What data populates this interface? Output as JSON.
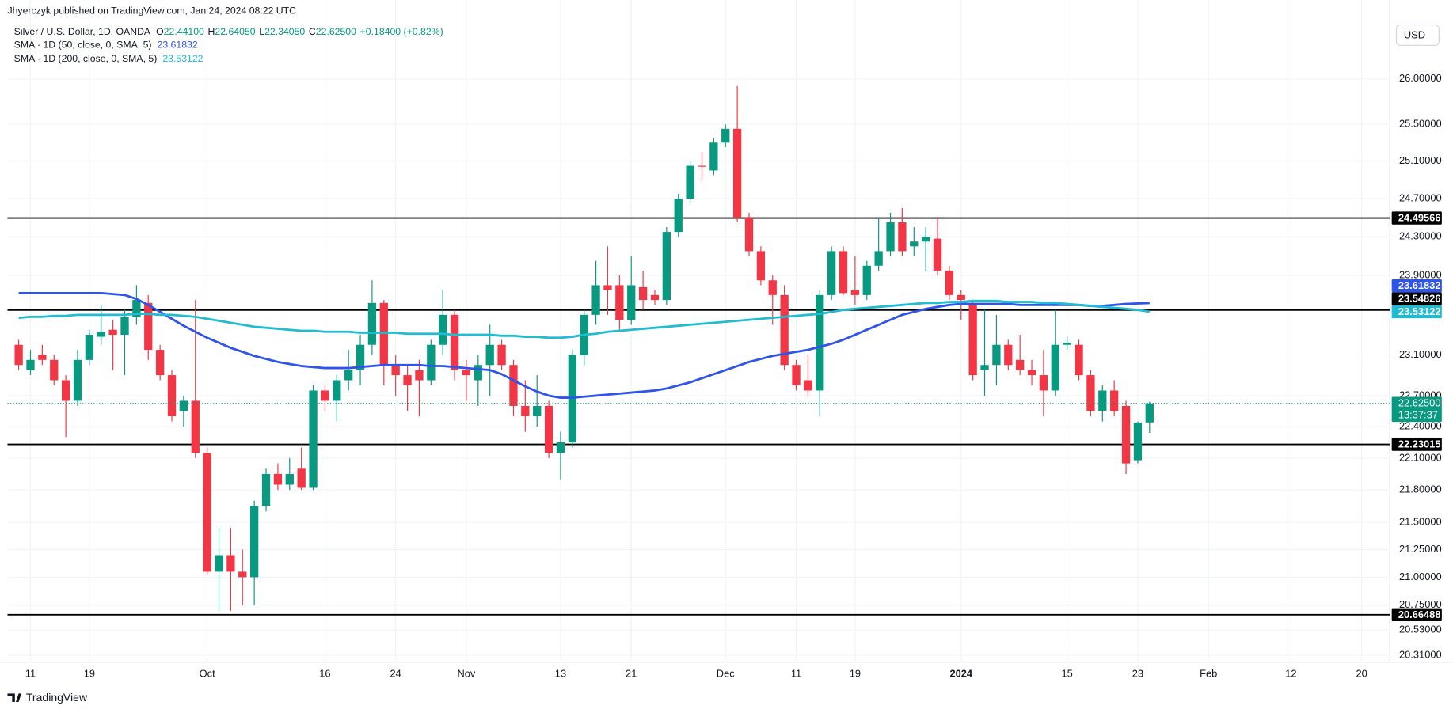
{
  "chart_data": {
    "type": "candlestick",
    "publisher": "Jhyerczyk published on TradingView.com, Jan 24, 2024 08:22 UTC",
    "symbol": "Silver / U.S. Dollar, 1D, OANDA",
    "ohlc": [
      {
        "key": "O",
        "text": "22.44100"
      },
      {
        "key": "H",
        "text": "22.64050"
      },
      {
        "key": "L",
        "text": "22.34050"
      },
      {
        "key": "C",
        "text": "22.62500"
      }
    ],
    "change": "+0.18400 (+0.82%)",
    "currency": "USD",
    "footer": "TradingView",
    "log": true,
    "grid": true,
    "up_color": "#089981",
    "down_color": "#f23645",
    "xlim": [
      -0.95,
      116.4
    ],
    "ylim": [
      20.25,
      26.81
    ],
    "xticks": [
      {
        "value": 1,
        "label": "11"
      },
      {
        "value": 6,
        "label": "19"
      },
      {
        "value": 16,
        "label": "Oct"
      },
      {
        "value": 26,
        "label": "16"
      },
      {
        "value": 32,
        "label": "24"
      },
      {
        "value": 38,
        "label": "Nov"
      },
      {
        "value": 46,
        "label": "13"
      },
      {
        "value": 52,
        "label": "21"
      },
      {
        "value": 60,
        "label": "Dec"
      },
      {
        "value": 66,
        "label": "11"
      },
      {
        "value": 71,
        "label": "19"
      },
      {
        "value": 80,
        "label": "2024"
      },
      {
        "value": 89,
        "label": "15"
      },
      {
        "value": 95,
        "label": "23"
      },
      {
        "value": 101,
        "label": "Feb"
      },
      {
        "value": 108,
        "label": "12"
      },
      {
        "value": 114,
        "label": "20"
      }
    ],
    "yticks": [
      {
        "value": 26,
        "label": "26.00000"
      },
      {
        "value": 25.5,
        "label": "25.50000"
      },
      {
        "value": 25.1,
        "label": "25.10000"
      },
      {
        "value": 24.7,
        "label": "24.70000"
      },
      {
        "value": 24.3,
        "label": "24.30000"
      },
      {
        "value": 23.9,
        "label": "23.90000"
      },
      {
        "value": 23.1,
        "label": "23.10000"
      },
      {
        "value": 22.7,
        "label": "22.70000"
      },
      {
        "value": 22.4,
        "label": "22.40000"
      },
      {
        "value": 22.1,
        "label": "22.10000"
      },
      {
        "value": 21.8,
        "label": "21.80000"
      },
      {
        "value": 21.5,
        "label": "21.50000"
      },
      {
        "value": 21.25,
        "label": "21.25000"
      },
      {
        "value": 21,
        "label": "21.00000"
      },
      {
        "value": 20.75,
        "label": "20.75000"
      },
      {
        "value": 20.53,
        "label": "20.53000"
      },
      {
        "value": 20.31,
        "label": "20.31000"
      }
    ],
    "candles": {
      "open": [
        23.2,
        22.95,
        23.1,
        23.05,
        22.85,
        22.65,
        23.05,
        23.28,
        23.35,
        23.3,
        23.48,
        23.62,
        23.15,
        22.9,
        22.55,
        22.65,
        22.15,
        21.05,
        21.2,
        21.05,
        21.0,
        21.65,
        21.95,
        21.85,
        22.0,
        21.82,
        22.75,
        22.65,
        22.85,
        22.95,
        23.2,
        23.62,
        23.0,
        22.9,
        22.95,
        22.85,
        23.2,
        23.5,
        22.95,
        22.85,
        23.0,
        23.2,
        23.0,
        22.6,
        22.5,
        22.6,
        22.15,
        22.25,
        23.1,
        23.5,
        23.8,
        23.8,
        23.45,
        23.78,
        23.7,
        23.65,
        24.35,
        24.7,
        25.05,
        25.0,
        25.3,
        25.45,
        24.5,
        24.15,
        23.85,
        23.7,
        23.0,
        22.85,
        22.75,
        23.7,
        24.15,
        23.75,
        23.7,
        24.0,
        24.15,
        24.45,
        24.2,
        24.25,
        24.28,
        23.95,
        23.7,
        23.6,
        22.95,
        23.0,
        23.2,
        23.05,
        22.95,
        22.9,
        22.75,
        23.2,
        23.2,
        22.9,
        22.55,
        22.75,
        22.6,
        22.08,
        22.441
      ],
      "high": [
        23.25,
        23.15,
        23.2,
        23.1,
        22.9,
        23.15,
        23.35,
        23.6,
        23.45,
        23.55,
        23.8,
        23.7,
        23.2,
        22.95,
        22.7,
        23.65,
        22.2,
        21.45,
        21.45,
        21.25,
        21.7,
        22.0,
        22.05,
        22.1,
        22.2,
        22.8,
        22.8,
        22.9,
        23.15,
        23.3,
        23.85,
        23.65,
        23.1,
        23.0,
        23.05,
        23.25,
        23.75,
        23.55,
        23.05,
        23.1,
        23.4,
        23.25,
        23.05,
        22.85,
        22.9,
        22.65,
        22.35,
        23.15,
        23.55,
        24.05,
        24.2,
        23.9,
        24.1,
        23.95,
        23.75,
        24.4,
        24.75,
        25.1,
        25.2,
        25.35,
        25.5,
        25.92,
        24.55,
        24.2,
        23.9,
        23.8,
        23.05,
        23.1,
        23.75,
        24.2,
        24.2,
        24.1,
        24.05,
        24.5,
        24.55,
        24.6,
        24.4,
        24.4,
        24.5,
        24.0,
        23.75,
        23.65,
        23.55,
        23.5,
        23.25,
        23.3,
        23.05,
        23.15,
        23.55,
        23.28,
        23.25,
        22.95,
        22.8,
        22.85,
        22.65,
        22.45,
        22.6405
      ],
      "low": [
        22.95,
        22.9,
        23.0,
        22.8,
        22.3,
        22.6,
        23.0,
        23.2,
        22.95,
        22.9,
        23.4,
        23.05,
        22.85,
        22.45,
        22.4,
        22.1,
        21.02,
        20.7,
        20.7,
        20.75,
        20.75,
        21.6,
        21.8,
        21.8,
        21.8,
        21.8,
        22.55,
        22.45,
        22.75,
        22.8,
        23.1,
        22.8,
        22.7,
        22.55,
        22.5,
        22.8,
        23.1,
        22.85,
        22.65,
        22.6,
        22.7,
        22.95,
        22.5,
        22.35,
        22.4,
        22.1,
        21.9,
        22.2,
        23.0,
        23.4,
        23.5,
        23.35,
        23.4,
        23.55,
        23.6,
        23.6,
        24.3,
        24.65,
        24.9,
        24.95,
        25.25,
        24.45,
        24.1,
        23.8,
        23.4,
        22.95,
        22.75,
        22.7,
        22.5,
        23.65,
        23.7,
        23.6,
        23.65,
        23.95,
        24.1,
        24.1,
        24.1,
        23.95,
        23.9,
        23.65,
        23.45,
        22.85,
        22.7,
        22.8,
        22.95,
        22.9,
        22.8,
        22.5,
        22.7,
        23.15,
        22.85,
        22.5,
        22.45,
        22.5,
        21.95,
        22.05,
        22.3405
      ],
      "close": [
        23.0,
        23.05,
        23.05,
        22.85,
        22.65,
        23.05,
        23.3,
        23.33,
        23.3,
        23.48,
        23.65,
        23.15,
        22.9,
        22.5,
        22.65,
        22.15,
        21.05,
        21.2,
        21.05,
        21.0,
        21.65,
        21.95,
        21.85,
        21.95,
        21.82,
        22.75,
        22.65,
        22.85,
        22.95,
        23.2,
        23.62,
        23.0,
        22.9,
        22.8,
        22.85,
        23.2,
        23.5,
        22.95,
        22.9,
        23.0,
        23.2,
        23.0,
        22.6,
        22.5,
        22.6,
        22.15,
        22.25,
        23.1,
        23.5,
        23.8,
        23.75,
        23.45,
        23.8,
        23.65,
        23.65,
        24.35,
        24.7,
        25.05,
        25.04,
        25.3,
        25.45,
        24.5,
        24.15,
        23.85,
        23.7,
        23.0,
        22.8,
        22.75,
        23.7,
        24.15,
        23.72,
        23.7,
        24.0,
        24.15,
        24.45,
        24.15,
        24.25,
        24.3,
        23.95,
        23.7,
        23.65,
        22.9,
        23.0,
        23.2,
        23.0,
        22.95,
        22.9,
        22.75,
        23.2,
        23.22,
        22.9,
        22.55,
        22.75,
        22.55,
        22.05,
        22.44,
        22.625
      ]
    },
    "series": [
      {
        "name": "SMA · 1D (50, close, 0, SMA, 5)",
        "color": "#2f54eb",
        "values": [
          23.72,
          23.72,
          23.72,
          23.72,
          23.72,
          23.72,
          23.72,
          23.72,
          23.71,
          23.7,
          23.66,
          23.6,
          23.53,
          23.46,
          23.39,
          23.33,
          23.27,
          23.22,
          23.17,
          23.13,
          23.09,
          23.06,
          23.03,
          23.01,
          22.99,
          22.98,
          22.97,
          22.97,
          22.97,
          22.98,
          22.99,
          23.0,
          23.0,
          23.0,
          23.0,
          22.99,
          22.99,
          22.98,
          22.97,
          22.96,
          22.95,
          22.91,
          22.85,
          22.79,
          22.74,
          22.7,
          22.68,
          22.68,
          22.69,
          22.7,
          22.71,
          22.72,
          22.73,
          22.74,
          22.75,
          22.77,
          22.8,
          22.83,
          22.87,
          22.91,
          22.95,
          22.99,
          23.03,
          23.06,
          23.09,
          23.11,
          23.13,
          23.15,
          23.18,
          23.21,
          23.25,
          23.3,
          23.35,
          23.4,
          23.45,
          23.5,
          23.53,
          23.56,
          23.58,
          23.6,
          23.61,
          23.61,
          23.61,
          23.61,
          23.61,
          23.6,
          23.6,
          23.6,
          23.6,
          23.6,
          23.6,
          23.59,
          23.59,
          23.6,
          23.61,
          23.615,
          23.61832
        ]
      },
      {
        "name": "SMA · 1D (200, close, 0, SMA, 5)",
        "color": "#1fbcd2",
        "values": [
          23.47,
          23.48,
          23.48,
          23.49,
          23.49,
          23.5,
          23.5,
          23.5,
          23.5,
          23.5,
          23.51,
          23.51,
          23.5,
          23.5,
          23.49,
          23.48,
          23.46,
          23.44,
          23.42,
          23.4,
          23.38,
          23.37,
          23.36,
          23.35,
          23.34,
          23.34,
          23.33,
          23.33,
          23.33,
          23.32,
          23.32,
          23.32,
          23.32,
          23.31,
          23.31,
          23.31,
          23.31,
          23.3,
          23.3,
          23.3,
          23.3,
          23.29,
          23.29,
          23.28,
          23.28,
          23.27,
          23.27,
          23.28,
          23.3,
          23.31,
          23.33,
          23.34,
          23.35,
          23.36,
          23.37,
          23.38,
          23.39,
          23.4,
          23.41,
          23.42,
          23.43,
          23.44,
          23.45,
          23.46,
          23.47,
          23.48,
          23.49,
          23.5,
          23.51,
          23.53,
          23.55,
          23.56,
          23.57,
          23.58,
          23.59,
          23.6,
          23.61,
          23.62,
          23.62,
          23.63,
          23.63,
          23.64,
          23.64,
          23.64,
          23.63,
          23.63,
          23.63,
          23.62,
          23.62,
          23.61,
          23.6,
          23.59,
          23.58,
          23.57,
          23.56,
          23.55,
          23.53122
        ]
      }
    ],
    "hlines": [
      24.49566,
      23.54826,
      22.23015,
      20.66488
    ],
    "hline_color": "#000000",
    "last_price": {
      "value": 22.625,
      "label": "22.62500"
    },
    "countdown": "13:37:37"
  }
}
